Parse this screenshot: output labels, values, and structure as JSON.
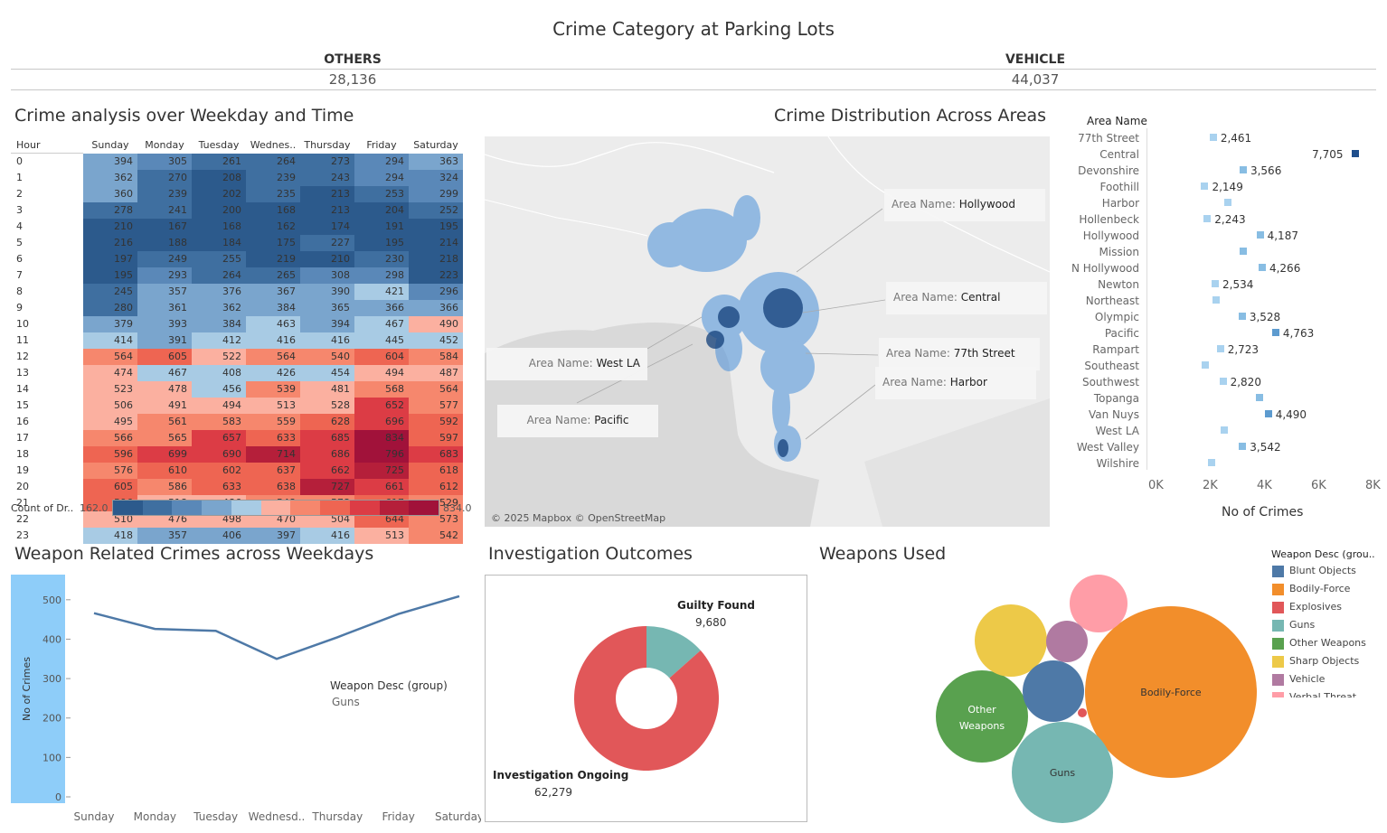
{
  "dashboard": {
    "title": "Crime Category at Parking Lots",
    "kpis": [
      {
        "label": "OTHERS",
        "value": "28,136"
      },
      {
        "label": "VEHICLE",
        "value": "44,037"
      }
    ]
  },
  "heatmap": {
    "title": "Crime analysis over Weekday and Time",
    "row_header": "Hour",
    "columns": [
      "Sunday",
      "Monday",
      "Tuesday",
      "Wednes..",
      "Thursday",
      "Friday",
      "Saturday"
    ],
    "rows": [
      {
        "hour": "0",
        "values": [
          394,
          305,
          261,
          264,
          273,
          294,
          363
        ]
      },
      {
        "hour": "1",
        "values": [
          362,
          270,
          208,
          239,
          243,
          294,
          324
        ]
      },
      {
        "hour": "2",
        "values": [
          360,
          239,
          202,
          235,
          213,
          253,
          299
        ]
      },
      {
        "hour": "3",
        "values": [
          278,
          241,
          200,
          168,
          213,
          204,
          252
        ]
      },
      {
        "hour": "4",
        "values": [
          210,
          167,
          168,
          162,
          174,
          191,
          195
        ]
      },
      {
        "hour": "5",
        "values": [
          216,
          188,
          184,
          175,
          227,
          195,
          214
        ]
      },
      {
        "hour": "6",
        "values": [
          197,
          249,
          255,
          219,
          210,
          230,
          218
        ]
      },
      {
        "hour": "7",
        "values": [
          195,
          293,
          264,
          265,
          308,
          298,
          223
        ]
      },
      {
        "hour": "8",
        "values": [
          245,
          357,
          376,
          367,
          390,
          421,
          296
        ]
      },
      {
        "hour": "9",
        "values": [
          280,
          361,
          362,
          384,
          365,
          366,
          366
        ]
      },
      {
        "hour": "10",
        "values": [
          379,
          393,
          384,
          463,
          394,
          467,
          490
        ]
      },
      {
        "hour": "11",
        "values": [
          414,
          391,
          412,
          416,
          416,
          445,
          452
        ]
      },
      {
        "hour": "12",
        "values": [
          564,
          605,
          522,
          564,
          540,
          604,
          584
        ]
      },
      {
        "hour": "13",
        "values": [
          474,
          467,
          408,
          426,
          454,
          494,
          487
        ]
      },
      {
        "hour": "14",
        "values": [
          523,
          478,
          456,
          539,
          481,
          568,
          564
        ]
      },
      {
        "hour": "15",
        "values": [
          506,
          491,
          494,
          513,
          528,
          652,
          577
        ]
      },
      {
        "hour": "16",
        "values": [
          495,
          561,
          583,
          559,
          628,
          696,
          592
        ]
      },
      {
        "hour": "17",
        "values": [
          566,
          565,
          657,
          633,
          685,
          834,
          597
        ]
      },
      {
        "hour": "18",
        "values": [
          596,
          699,
          690,
          714,
          686,
          796,
          683
        ]
      },
      {
        "hour": "19",
        "values": [
          576,
          610,
          602,
          637,
          662,
          725,
          618
        ]
      },
      {
        "hour": "20",
        "values": [
          605,
          586,
          633,
          638,
          727,
          661,
          612
        ]
      },
      {
        "hour": "21",
        "values": [
          596,
          518,
          486,
          548,
          578,
          617,
          529
        ]
      },
      {
        "hour": "22",
        "values": [
          510,
          476,
          498,
          470,
          504,
          644,
          573
        ]
      },
      {
        "hour": "23",
        "values": [
          418,
          357,
          406,
          397,
          416,
          513,
          542
        ]
      }
    ],
    "legend_label": "Count of Dr..",
    "legend_min": "162.0",
    "legend_max": "834.0",
    "min": 162,
    "max": 834
  },
  "map": {
    "title": "Crime Distribution Across Areas",
    "attribution": "© 2025 Mapbox © OpenStreetMap",
    "label_prefix": "Area Name:",
    "labels": [
      "Hollywood",
      "Central",
      "West LA",
      "77th Street",
      "Harbor",
      "Pacific"
    ]
  },
  "area_chart": {
    "header": "Area Name",
    "xlabel": "No of Crimes",
    "ticks": [
      "0K",
      "2K",
      "4K",
      "6K",
      "8K"
    ],
    "xlim": [
      0,
      8000
    ],
    "areas": [
      {
        "name": "77th Street",
        "value": 2461,
        "label": "2,461"
      },
      {
        "name": "Central",
        "value": 7705,
        "label": "7,705"
      },
      {
        "name": "Devonshire",
        "value": 3566,
        "label": "3,566"
      },
      {
        "name": "Foothill",
        "value": 2149,
        "label": "2,149"
      },
      {
        "name": "Harbor",
        "value": 3000,
        "label": ""
      },
      {
        "name": "Hollenbeck",
        "value": 2243,
        "label": "2,243"
      },
      {
        "name": "Hollywood",
        "value": 4187,
        "label": "4,187"
      },
      {
        "name": "Mission",
        "value": 3550,
        "label": ""
      },
      {
        "name": "N Hollywood",
        "value": 4266,
        "label": "4,266"
      },
      {
        "name": "Newton",
        "value": 2534,
        "label": "2,534"
      },
      {
        "name": "Northeast",
        "value": 2550,
        "label": ""
      },
      {
        "name": "Olympic",
        "value": 3528,
        "label": "3,528"
      },
      {
        "name": "Pacific",
        "value": 4763,
        "label": "4,763"
      },
      {
        "name": "Rampart",
        "value": 2723,
        "label": "2,723"
      },
      {
        "name": "Southeast",
        "value": 2150,
        "label": ""
      },
      {
        "name": "Southwest",
        "value": 2820,
        "label": "2,820"
      },
      {
        "name": "Topanga",
        "value": 4180,
        "label": ""
      },
      {
        "name": "Van Nuys",
        "value": 4490,
        "label": "4,490"
      },
      {
        "name": "West LA",
        "value": 2850,
        "label": ""
      },
      {
        "name": "West Valley",
        "value": 3542,
        "label": "3,542"
      },
      {
        "name": "Wilshire",
        "value": 2400,
        "label": ""
      }
    ]
  },
  "weapon_line": {
    "title": "Weapon Related Crimes across Weekdays",
    "ylabel": "No of Crimes",
    "categories": [
      "Sunday",
      "Monday",
      "Tuesday",
      "Wednesd..",
      "Thursday",
      "Friday",
      "Saturday"
    ],
    "values": [
      466,
      426,
      421,
      350,
      405,
      464,
      509
    ],
    "yticks": [
      "500",
      "400",
      "300",
      "200",
      "100",
      "0"
    ],
    "ylim": [
      0,
      550
    ],
    "legend_title": "Weapon Desc (group)",
    "legend_value": "Guns"
  },
  "outcomes": {
    "title": "Investigation Outcomes",
    "slices": [
      {
        "name": "Guilty Found",
        "value": 9680,
        "label": "9,680",
        "color": "#76b7b2"
      },
      {
        "name": "Investigation Ongoing",
        "value": 62279,
        "label": "62,279",
        "color": "#e15759"
      }
    ]
  },
  "weapons": {
    "title": "Weapons Used",
    "legend_title": "Weapon Desc (grou..",
    "legend": [
      {
        "name": "Blunt Objects",
        "color": "#4e79a7"
      },
      {
        "name": "Bodily-Force",
        "color": "#f28e2b"
      },
      {
        "name": "Explosives",
        "color": "#e15759"
      },
      {
        "name": "Guns",
        "color": "#76b7b2"
      },
      {
        "name": "Other Weapons",
        "color": "#59a14f"
      },
      {
        "name": "Sharp Objects",
        "color": "#edc948"
      },
      {
        "name": "Vehicle",
        "color": "#b07aa1"
      },
      {
        "name": "Verbal Threat",
        "color": "#ff9da7"
      }
    ],
    "bubble_labels": {
      "bodily_force": "Bodily-Force",
      "other_weapons_1": "Other",
      "other_weapons_2": "Weapons",
      "guns": "Guns"
    }
  }
}
